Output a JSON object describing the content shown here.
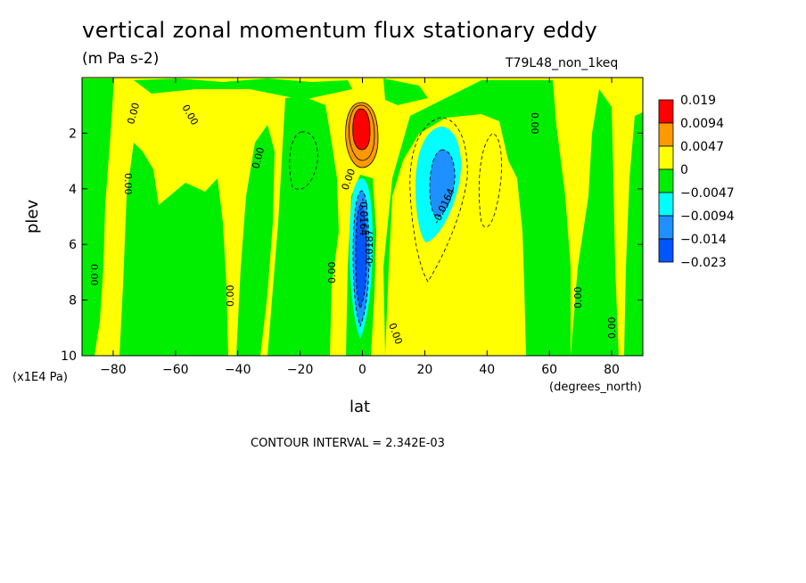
{
  "chart_data": {
    "type": "heatmap",
    "title": "vertical zonal momentum flux stationary eddy",
    "subtitle": "(m Pa s-2)",
    "run_label": "T79L48_non_1keq",
    "xlabel": "lat",
    "x_units": "(degrees_north)",
    "ylabel": "plev",
    "y_units": "(x1E4 Pa)",
    "xlim": [
      -90,
      90
    ],
    "ylim": [
      10,
      0
    ],
    "x_ticks": [
      -80,
      -60,
      -40,
      -20,
      0,
      20,
      40,
      60,
      80
    ],
    "y_ticks": [
      2,
      4,
      6,
      8,
      10
    ],
    "contour_interval": "CONTOUR INTERVAL = 2.342E-03",
    "contour_labels": [
      "0.00",
      "-0.0187",
      "-0.0164"
    ],
    "legend": {
      "placement": "right",
      "levels": [
        "0.019",
        "0.0094",
        "0.0047",
        "0",
        "-0.0047",
        "-0.0094",
        "-0.014",
        "-0.023"
      ],
      "colors": [
        "#ff0000",
        "#ff9900",
        "#ffff00",
        "#00ee00",
        "#00ffff",
        "#1e90ff",
        "#0055ff"
      ]
    },
    "features": [
      {
        "name": "positive-maximum",
        "lat": 0,
        "plev": 1.9,
        "value": 0.019
      },
      {
        "name": "equatorial-negative-minimum",
        "lat": 0,
        "plev": 6.5,
        "value": -0.023
      },
      {
        "name": "subtropical-negative-minimum",
        "lat": 25,
        "plev": 3.5,
        "value": -0.014
      }
    ]
  }
}
